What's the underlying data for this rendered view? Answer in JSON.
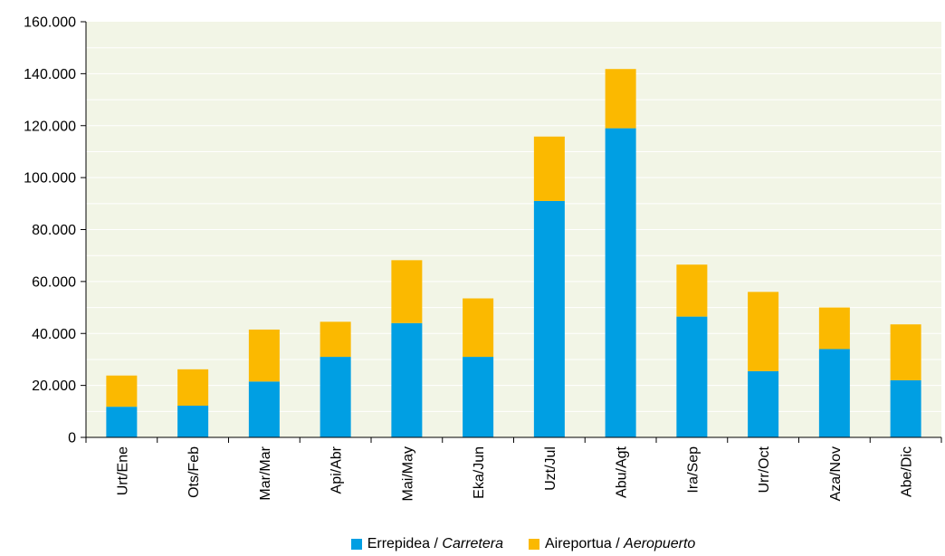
{
  "chart_data": {
    "type": "bar",
    "stacked": true,
    "categories": [
      "Urt/Ene",
      "Ots/Feb",
      "Mar/Mar",
      "Api/Abr",
      "Mai/May",
      "Eka/Jun",
      "Uzt/Jul",
      "Abu/Agt",
      "Ira/Sep",
      "Urr/Oct",
      "Aza/Nov",
      "Abe/Dic"
    ],
    "series": [
      {
        "name": "Errepidea / Carretera",
        "name_plain": "Errepidea / ",
        "name_italic": "Carretera",
        "color": "#009fe3",
        "values": [
          11800,
          12200,
          21500,
          31000,
          44000,
          31000,
          91000,
          119000,
          46500,
          25500,
          34000,
          22000
        ]
      },
      {
        "name": "Aireportua / Aeropuerto",
        "name_plain": "Aireportua / ",
        "name_italic": "Aeropuerto",
        "color": "#fbb900",
        "values": [
          12000,
          14000,
          20000,
          13500,
          24200,
          22500,
          24800,
          22800,
          20000,
          30500,
          16000,
          21500
        ]
      }
    ],
    "ylim": [
      0,
      160000
    ],
    "yticks": [
      "0",
      "20.000",
      "40.000",
      "60.000",
      "80.000",
      "100.000",
      "120.000",
      "140.000",
      "160.000"
    ],
    "ytick_values": [
      0,
      20000,
      40000,
      60000,
      80000,
      100000,
      120000,
      140000,
      160000
    ],
    "grid": true,
    "plot_background": "#f2f5e6",
    "grid_color": "#ffffff",
    "legend_position": "bottom-center",
    "xtick_rotation": "vertical",
    "title": "",
    "xlabel": "",
    "ylabel": ""
  }
}
